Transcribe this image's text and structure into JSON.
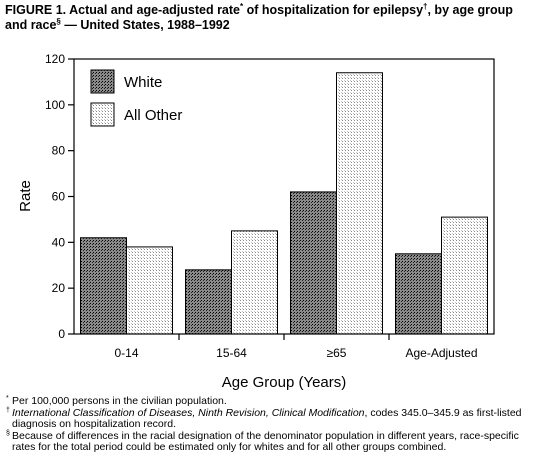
{
  "header": {
    "title_part1": "FIGURE 1. Actual and age-adjusted rate",
    "title_mark1": "*",
    "title_part2": " of hospitalization for epilepsy",
    "title_mark2": "†",
    "title_part3": ", by age group and race",
    "title_mark3": "§",
    "title_part4": " — United States, 1988–1992"
  },
  "chart_data": {
    "type": "bar",
    "categories": [
      "0-14",
      "15-64",
      "≥65",
      "Age-Adjusted"
    ],
    "series": [
      {
        "name": "White",
        "values": [
          42,
          28,
          62,
          35
        ]
      },
      {
        "name": "All Other",
        "values": [
          38,
          45,
          114,
          51
        ]
      }
    ],
    "xlabel": "Age Group (Years)",
    "ylabel": "Rate",
    "ylim": [
      0,
      120
    ],
    "yticks": [
      0,
      20,
      40,
      60,
      80,
      100,
      120
    ],
    "legend": "top-left",
    "grid": false,
    "colors": {
      "White": "#555555",
      "All Other": "#e6e6e6"
    }
  },
  "footnotes": [
    {
      "mark": "*",
      "text": "Per 100,000 persons in the civilian population."
    },
    {
      "mark": "†",
      "italic": "International Classification of Diseases, Ninth Revision, Clinical Modification",
      "text": ", codes 345.0–345.9 as first-listed diagnosis on hospitalization record."
    },
    {
      "mark": "§",
      "text": "Because of differences in the racial designation of the denominator population in different years, race-specific rates for the total period could be estimated only for whites and for all other groups combined."
    }
  ]
}
